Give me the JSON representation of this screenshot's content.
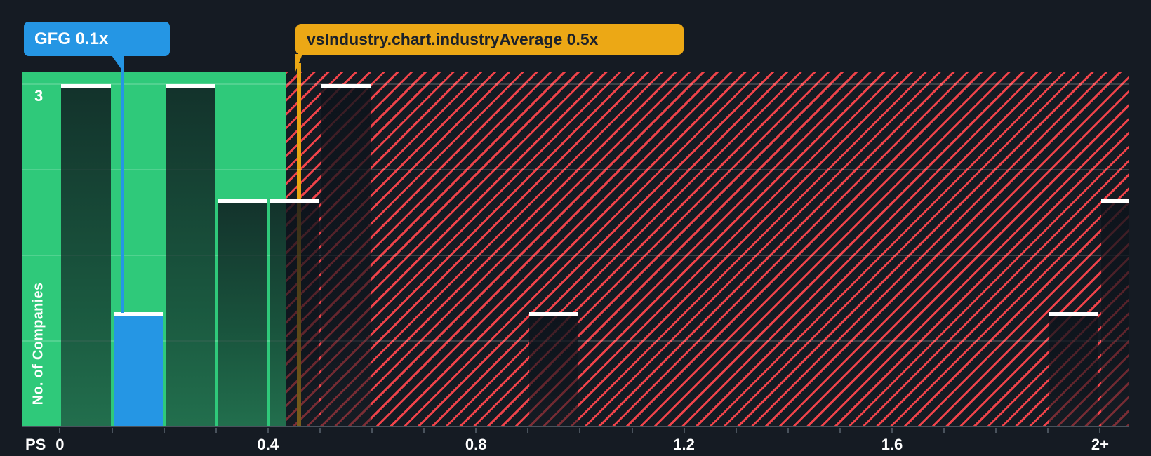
{
  "chart_data": {
    "type": "bar",
    "subtype": "histogram",
    "x_axis": {
      "title": "PS",
      "min": 0,
      "max": 2.06,
      "tick_step": 0.1,
      "labeled_ticks": [
        {
          "value": 0,
          "label": "0"
        },
        {
          "value": 0.4,
          "label": "0.4"
        },
        {
          "value": 0.8,
          "label": "0.8"
        },
        {
          "value": 1.2,
          "label": "1.2"
        },
        {
          "value": 1.6,
          "label": "1.6"
        },
        {
          "value": 2.0,
          "label": "2+"
        }
      ]
    },
    "y_axis": {
      "title": "No. of Companies",
      "min": 0,
      "max": 3,
      "visible_tick_label": "3",
      "grid_divisions": 4
    },
    "bins": [
      {
        "from": 0.0,
        "to": 0.1,
        "count": 3,
        "highlight": false
      },
      {
        "from": 0.1,
        "to": 0.2,
        "count": 1,
        "highlight": true
      },
      {
        "from": 0.2,
        "to": 0.3,
        "count": 3,
        "highlight": false
      },
      {
        "from": 0.3,
        "to": 0.4,
        "count": 2,
        "highlight": false
      },
      {
        "from": 0.4,
        "to": 0.5,
        "count": 2,
        "highlight": false
      },
      {
        "from": 0.5,
        "to": 0.6,
        "count": 3,
        "highlight": false
      },
      {
        "from": 0.9,
        "to": 1.0,
        "count": 1,
        "highlight": false
      },
      {
        "from": 1.9,
        "to": 2.0,
        "count": 1,
        "highlight": false
      },
      {
        "from": 2.0,
        "to": 2.06,
        "count": 2,
        "highlight": false
      }
    ],
    "markers": {
      "company": {
        "label": "GFG 0.1x",
        "ticker": "GFG",
        "value": "0.1x",
        "line_x": 0.12,
        "color": "#2596E4"
      },
      "industry_average": {
        "label": "vsIndustry.chart.industryAverage 0.5x",
        "value": "0.5x",
        "line_x": 0.46,
        "color": "#ECA815",
        "line_color": "#E6A411",
        "text_color": "#1B212B"
      }
    },
    "zones": {
      "below_average": {
        "x_end": 0.434,
        "color": "#2FC97A"
      },
      "above_average": {
        "style": "red-diagonal-hatch",
        "hatch_color": "#F0434A"
      }
    },
    "colors": {
      "background": "#151B23",
      "bar_cap": "#FFFFFF",
      "highlight_bar": "#2596E4",
      "grid": "rgba(255,255,255,0.17)",
      "axis": "#49525C",
      "text": "#FFFFFF"
    }
  }
}
